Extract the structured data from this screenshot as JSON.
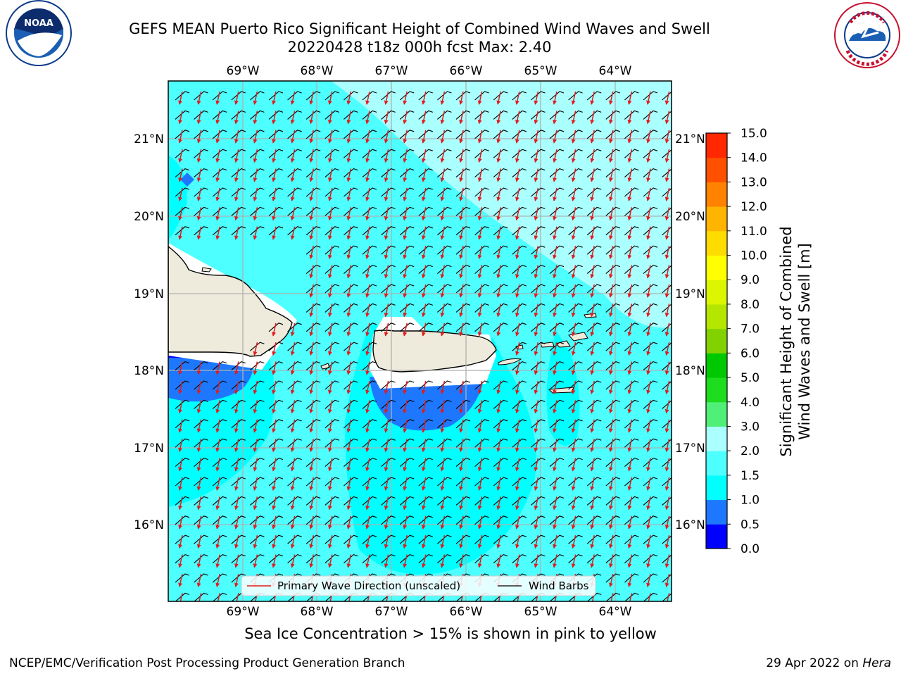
{
  "title_line1": "GEFS MEAN Puerto Rico Significant Height of Combined Wind Waves and Swell",
  "title_line2": "20220428 t18z 000h fcst   Max: 2.40",
  "map": {
    "lon_labels": [
      "69°W",
      "68°W",
      "67°W",
      "66°W",
      "65°W",
      "64°W"
    ],
    "lat_labels": [
      "21°N",
      "20°N",
      "19°N",
      "18°N",
      "17°N",
      "16°N"
    ],
    "legend": {
      "wave_direction": "Primary Wave Direction (unscaled)",
      "wind_barbs": "Wind Barbs"
    },
    "colors": {
      "land": "#eeebdc",
      "wave_arrow": "#e31a1c",
      "barb": "#000000",
      "grid": "#b0b0b0"
    }
  },
  "colorbar": {
    "label_line1": "Significant Height of Combined",
    "label_line2": "Wind Waves and Swell [m]",
    "ticks": [
      "0.0",
      "0.5",
      "1.0",
      "1.5",
      "2.0",
      "3.0",
      "4.0",
      "5.0",
      "6.0",
      "7.0",
      "8.0",
      "9.0",
      "10.0",
      "11.0",
      "12.0",
      "13.0",
      "14.0",
      "15.0"
    ],
    "colors": [
      "#0000ff",
      "#1e78ff",
      "#00ffff",
      "#4dffff",
      "#aaffff",
      "#50f078",
      "#1edc1e",
      "#00c800",
      "#82d200",
      "#b4e600",
      "#dcf500",
      "#ffff00",
      "#ffdc00",
      "#ffb400",
      "#ff8200",
      "#ff5000",
      "#ff2800"
    ]
  },
  "footer": {
    "sea_ice_note": "Sea Ice Concentration > 15% is shown in pink to yellow",
    "branch": "NCEP/EMC/Verification Post Processing Product Generation Branch",
    "date": "29 Apr 2022 on ",
    "host": "Hera"
  },
  "logos": {
    "noaa_text": "NOAA",
    "nws_text": "NATIONAL WEATHER SERVICE"
  }
}
